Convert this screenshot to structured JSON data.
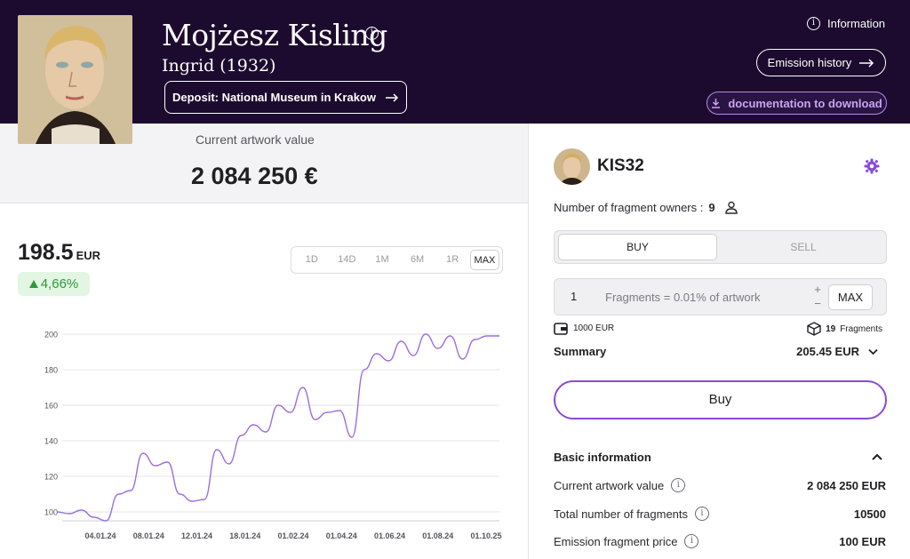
{
  "header": {
    "artist": "Mojżesz Kisling",
    "artwork": "Ingrid (1932)",
    "deposit_label": "Deposit: National Museum in Krakow",
    "information_label": "Information",
    "emission_history_label": "Emission history",
    "documentation_label": "documentation to download"
  },
  "valuation": {
    "label": "Current artwork value",
    "value": "2 084 250 €"
  },
  "price": {
    "value": "198.5",
    "unit": "EUR",
    "change": "4,66%"
  },
  "ranges": [
    "1D",
    "14D",
    "1M",
    "6M",
    "1R",
    "MAX"
  ],
  "active_range": "MAX",
  "chart_data": {
    "type": "line",
    "x_ticks": [
      "04.01.24",
      "08.01.24",
      "12.01.24",
      "18.01.24",
      "01.02.24",
      "01.04.24",
      "01.06.24",
      "01.08.24",
      "01.10.25"
    ],
    "y_ticks": [
      100,
      120,
      140,
      160,
      180,
      200
    ],
    "ylim": [
      95,
      202
    ],
    "grid": true,
    "line_color": "#9b6ee0",
    "values": [
      100,
      99,
      101,
      97,
      95,
      110,
      112,
      133,
      126,
      128,
      110,
      106,
      107,
      135,
      127,
      143,
      149,
      145,
      160,
      156,
      170,
      152,
      156,
      157,
      142,
      180,
      189,
      185,
      196,
      188,
      200,
      192,
      199,
      186,
      197,
      199,
      199
    ]
  },
  "token": {
    "code": "KIS32",
    "owners_label": "Number of fragment owners :",
    "owners_count": "9"
  },
  "trade": {
    "buy_tab": "BUY",
    "sell_tab": "SELL",
    "quantity": "1",
    "fragments_desc": "Fragments = 0.01% of artwork",
    "plus": "+",
    "minus": "−",
    "max_label": "MAX",
    "balance": "1000 EUR",
    "fragments_available": "19",
    "fragments_label": "Fragments",
    "summary_label": "Summary",
    "summary_value": "205.45 EUR",
    "buy_button": "Buy"
  },
  "basic_info": {
    "title": "Basic information",
    "rows": [
      {
        "label": "Current artwork value",
        "value": "2 084 250 EUR"
      },
      {
        "label": "Total number of fragments",
        "value": "10500"
      },
      {
        "label": "Emission fragment price",
        "value": "100 EUR"
      }
    ]
  },
  "colors": {
    "header_bg": "#1c0b2e",
    "accent": "#8a4ad6",
    "positive": "#2d9a3a"
  }
}
